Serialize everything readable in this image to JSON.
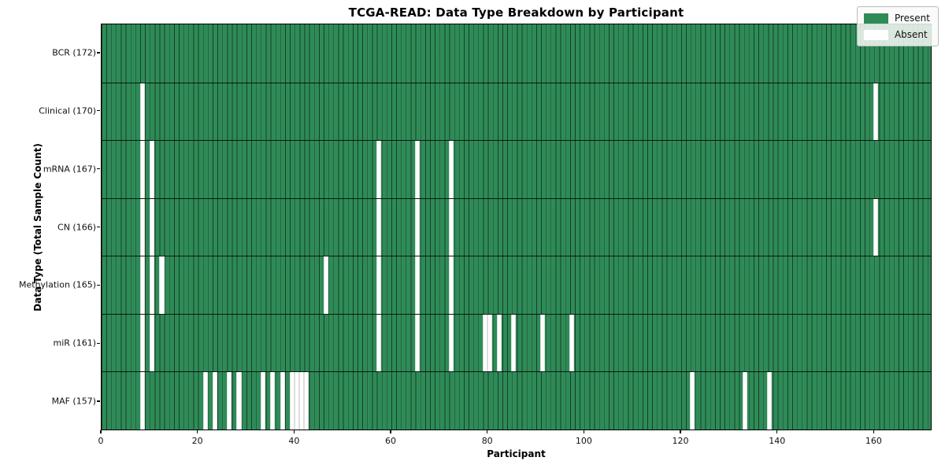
{
  "chart_data": {
    "type": "heatmap",
    "title": "TCGA-READ: Data Type Breakdown by Participant",
    "xlabel": "Participant",
    "ylabel": "Data Type (Total Sample Count)",
    "n_participants": 172,
    "x_ticks": [
      0,
      20,
      40,
      60,
      80,
      100,
      120,
      140,
      160
    ],
    "grid": "per-cell vertical lines and row separators",
    "legend_position": "upper right",
    "colors": {
      "present": "#2e8b57",
      "absent": "#ffffff",
      "cell_edge": "#1c1c1c"
    },
    "legend": [
      {
        "label": "Present",
        "color": "#2e8b57"
      },
      {
        "label": "Absent",
        "color": "#ffffff"
      }
    ],
    "rows": [
      {
        "label": "BCR (172)",
        "name": "BCR",
        "total": 172,
        "absent": []
      },
      {
        "label": "Clinical (170)",
        "name": "Clinical",
        "total": 170,
        "absent": [
          8,
          160
        ]
      },
      {
        "label": "mRNA (167)",
        "name": "mRNA",
        "total": 167,
        "absent": [
          8,
          10,
          57,
          65,
          72
        ]
      },
      {
        "label": "CN (166)",
        "name": "CN",
        "total": 166,
        "absent": [
          8,
          10,
          57,
          65,
          72,
          160
        ]
      },
      {
        "label": "Methylation (165)",
        "name": "Methylation",
        "total": 165,
        "absent": [
          8,
          10,
          12,
          46,
          57,
          65,
          72
        ]
      },
      {
        "label": "miR (161)",
        "name": "miR",
        "total": 161,
        "absent": [
          8,
          10,
          57,
          65,
          72,
          79,
          80,
          82,
          85,
          91,
          97
        ]
      },
      {
        "label": "MAF (157)",
        "name": "MAF",
        "total": 157,
        "absent": [
          8,
          21,
          23,
          26,
          28,
          33,
          35,
          37,
          39,
          40,
          41,
          42,
          122,
          133,
          138
        ]
      }
    ]
  }
}
